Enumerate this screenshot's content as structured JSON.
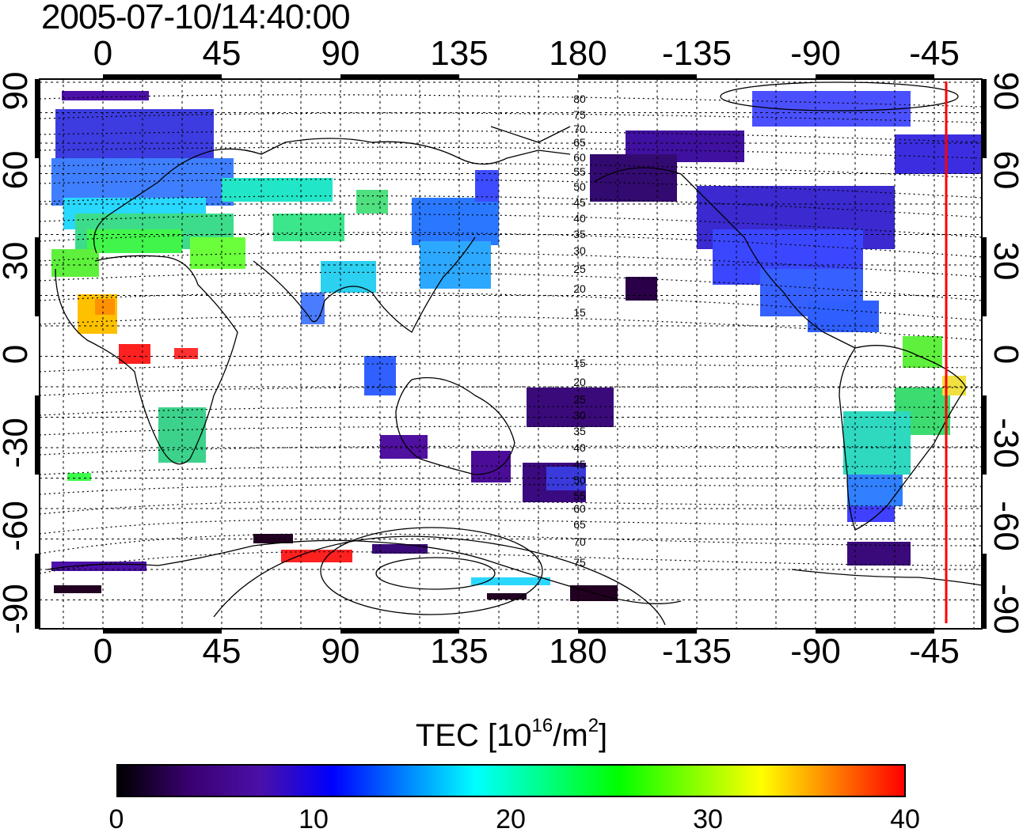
{
  "timestamp": "2005-07-10/14:40:00",
  "map": {
    "top_lon_labels": [
      "0",
      "45",
      "90",
      "135",
      "180",
      "-135",
      "-90",
      "-45"
    ],
    "bottom_lon_labels": [
      "0",
      "45",
      "90",
      "135",
      "180",
      "-135",
      "-90",
      "-45"
    ],
    "left_lat_labels": [
      "90",
      "60",
      "30",
      "0",
      "-30",
      "-60",
      "-90"
    ],
    "right_lat_labels": [
      "90",
      "60",
      "30",
      "0",
      "-30",
      "-60",
      "-90"
    ],
    "contour_labels": [
      "80",
      "75",
      "70",
      "65",
      "60",
      "55",
      "50",
      "45",
      "40",
      "35",
      "30",
      "25",
      "20",
      "15",
      "15",
      "20",
      "25",
      "30",
      "35",
      "40",
      "45",
      "50",
      "55",
      "60",
      "65",
      "70",
      "75"
    ],
    "terminator_color": "#ff0000",
    "terminator_longitude": -40
  },
  "colorbar": {
    "title_prefix": "TEC  [10",
    "title_exp": "16",
    "title_mid": "/m",
    "title_exp2": "2",
    "title_suffix": "]",
    "ticks": [
      "0",
      "10",
      "20",
      "30",
      "40"
    ],
    "min": 0,
    "max": 40,
    "stops": [
      "#000000",
      "#3a0070",
      "#4b10a8",
      "#0000ff",
      "#0080ff",
      "#00ffff",
      "#00ff80",
      "#00ff00",
      "#80ff00",
      "#ffff00",
      "#ff8000",
      "#ff0000"
    ]
  }
}
